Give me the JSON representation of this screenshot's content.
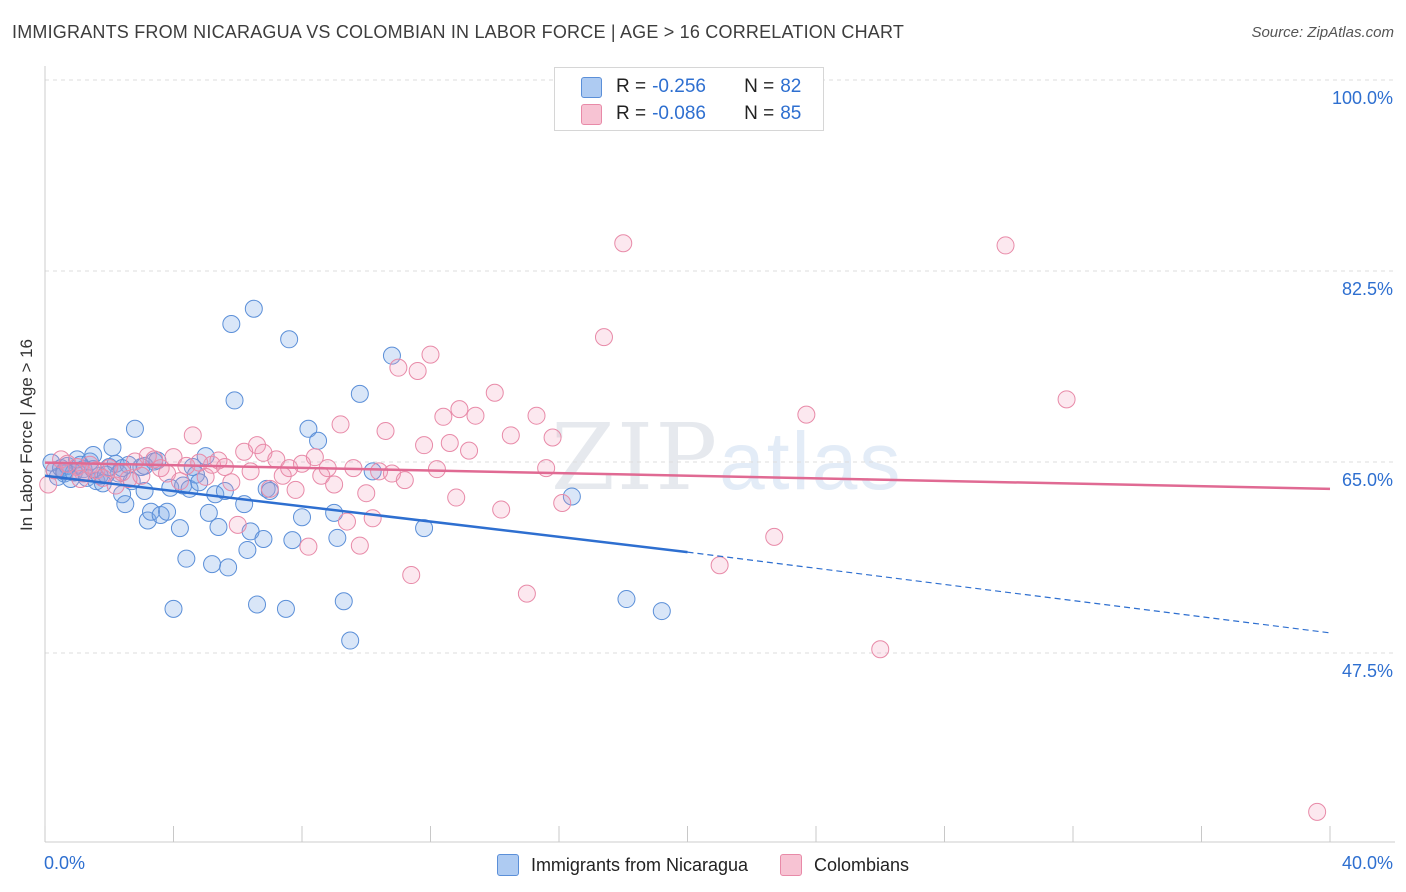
{
  "title": "IMMIGRANTS FROM NICARAGUA VS COLOMBIAN IN LABOR FORCE | AGE > 16 CORRELATION CHART",
  "source": "Source: ZipAtlas.com",
  "watermark": {
    "zip": "ZIP",
    "atlas": "atlas"
  },
  "legend_top": [
    {
      "color": "#aecbf2",
      "border": "#5b8fd8",
      "r_label": "R =",
      "r_value": "-0.256",
      "n_label": "N =",
      "n_value": "82"
    },
    {
      "color": "#f7c3d3",
      "border": "#e88aa8",
      "r_label": "R =",
      "r_value": "-0.086",
      "n_label": "N =",
      "n_value": "85"
    }
  ],
  "legend_bottom": [
    {
      "label": "Immigrants from Nicaragua",
      "color": "#aecbf2",
      "border": "#5b8fd8"
    },
    {
      "label": "Colombians",
      "color": "#f7c3d3",
      "border": "#e88aa8"
    }
  ],
  "colors": {
    "blue": "#2e6fd0",
    "pink": "#e06a93",
    "blue_fill": "rgba(120,165,230,0.28)",
    "pink_fill": "rgba(240,150,180,0.22)"
  },
  "chart_data": {
    "type": "scatter",
    "title": "IMMIGRANTS FROM NICARAGUA VS COLOMBIAN IN LABOR FORCE | AGE > 16 CORRELATION CHART",
    "xlabel": "",
    "ylabel": "In Labor Force | Age > 16",
    "xlim": [
      0,
      40
    ],
    "ylim": [
      30,
      100
    ],
    "x_tick_labels": [
      "0.0%",
      "40.0%"
    ],
    "y_ticks": [
      47.5,
      65.0,
      82.5,
      100.0
    ],
    "y_tick_labels": [
      "47.5%",
      "65.0%",
      "82.5%",
      "100.0%"
    ],
    "grid": true,
    "series": [
      {
        "name": "Immigrants from Nicaragua",
        "points": [
          [
            0.2,
            66.5
          ],
          [
            0.3,
            65.8
          ],
          [
            0.4,
            65.2
          ],
          [
            0.5,
            66.0
          ],
          [
            0.6,
            65.5
          ],
          [
            0.7,
            66.2
          ],
          [
            0.8,
            65.0
          ],
          [
            0.9,
            65.6
          ],
          [
            1.0,
            66.8
          ],
          [
            1.1,
            66.3
          ],
          [
            1.2,
            65.9
          ],
          [
            1.3,
            65.1
          ],
          [
            1.4,
            66.6
          ],
          [
            1.5,
            67.2
          ],
          [
            1.6,
            64.8
          ],
          [
            1.7,
            65.3
          ],
          [
            1.8,
            64.6
          ],
          [
            2.1,
            67.9
          ],
          [
            2.2,
            66.4
          ],
          [
            2.3,
            65.5
          ],
          [
            2.4,
            63.6
          ],
          [
            2.5,
            62.7
          ],
          [
            2.6,
            66.3
          ],
          [
            2.7,
            64.8
          ],
          [
            2.8,
            69.6
          ],
          [
            3.0,
            66.1
          ],
          [
            3.1,
            63.9
          ],
          [
            3.2,
            61.2
          ],
          [
            3.3,
            62.0
          ],
          [
            3.4,
            66.6
          ],
          [
            3.5,
            66.7
          ],
          [
            3.6,
            61.7
          ],
          [
            3.8,
            62.0
          ],
          [
            3.9,
            64.2
          ],
          [
            4.0,
            53.1
          ],
          [
            4.2,
            60.5
          ],
          [
            4.3,
            64.4
          ],
          [
            4.4,
            57.7
          ],
          [
            4.5,
            64.1
          ],
          [
            4.6,
            66.1
          ],
          [
            4.7,
            65.4
          ],
          [
            4.8,
            64.7
          ],
          [
            5.0,
            67.1
          ],
          [
            5.1,
            61.9
          ],
          [
            5.2,
            57.2
          ],
          [
            5.3,
            63.6
          ],
          [
            5.4,
            60.6
          ],
          [
            5.6,
            63.9
          ],
          [
            5.7,
            56.9
          ],
          [
            5.8,
            79.2
          ],
          [
            5.9,
            72.2
          ],
          [
            6.2,
            62.7
          ],
          [
            6.3,
            58.5
          ],
          [
            6.4,
            60.2
          ],
          [
            6.5,
            80.6
          ],
          [
            6.6,
            53.5
          ],
          [
            6.8,
            59.5
          ],
          [
            6.9,
            64.1
          ],
          [
            7.0,
            63.9
          ],
          [
            7.5,
            53.1
          ],
          [
            7.6,
            77.8
          ],
          [
            7.7,
            59.4
          ],
          [
            8.0,
            61.5
          ],
          [
            8.2,
            69.6
          ],
          [
            8.5,
            68.5
          ],
          [
            9.0,
            61.9
          ],
          [
            9.1,
            59.6
          ],
          [
            9.3,
            53.8
          ],
          [
            9.5,
            50.2
          ],
          [
            9.8,
            72.8
          ],
          [
            10.2,
            65.7
          ],
          [
            10.8,
            76.3
          ],
          [
            2.0,
            66.1
          ],
          [
            1.5,
            65.9
          ],
          [
            2.4,
            66.0
          ],
          [
            3.1,
            66.2
          ],
          [
            0.6,
            65.7
          ],
          [
            1.9,
            65.4
          ],
          [
            11.8,
            60.5
          ],
          [
            16.4,
            63.4
          ],
          [
            18.1,
            54.0
          ],
          [
            19.2,
            52.9
          ]
        ]
      },
      {
        "name": "Colombians",
        "points": [
          [
            0.1,
            64.5
          ],
          [
            0.3,
            65.8
          ],
          [
            0.5,
            66.8
          ],
          [
            0.7,
            66.4
          ],
          [
            1.0,
            66.1
          ],
          [
            1.2,
            65.5
          ],
          [
            1.4,
            66.3
          ],
          [
            1.6,
            65.8
          ],
          [
            1.8,
            65.1
          ],
          [
            2.0,
            66.0
          ],
          [
            2.2,
            64.4
          ],
          [
            2.4,
            65.6
          ],
          [
            2.6,
            65.0
          ],
          [
            2.8,
            66.6
          ],
          [
            3.0,
            65.3
          ],
          [
            3.2,
            67.1
          ],
          [
            3.4,
            66.8
          ],
          [
            3.6,
            66.0
          ],
          [
            3.8,
            65.5
          ],
          [
            4.0,
            67.0
          ],
          [
            4.2,
            64.8
          ],
          [
            4.4,
            66.2
          ],
          [
            4.6,
            69.0
          ],
          [
            4.8,
            66.5
          ],
          [
            5.0,
            65.2
          ],
          [
            5.2,
            66.3
          ],
          [
            5.4,
            66.7
          ],
          [
            5.6,
            66.1
          ],
          [
            5.8,
            64.7
          ],
          [
            6.0,
            60.8
          ],
          [
            6.2,
            67.5
          ],
          [
            6.4,
            65.7
          ],
          [
            6.6,
            68.1
          ],
          [
            6.8,
            67.4
          ],
          [
            7.0,
            64.1
          ],
          [
            7.2,
            66.8
          ],
          [
            7.4,
            65.3
          ],
          [
            7.6,
            66.0
          ],
          [
            7.8,
            64.0
          ],
          [
            8.0,
            66.4
          ],
          [
            8.2,
            58.8
          ],
          [
            8.4,
            67.0
          ],
          [
            8.6,
            65.3
          ],
          [
            8.8,
            66.0
          ],
          [
            9.0,
            64.5
          ],
          [
            9.2,
            70.0
          ],
          [
            9.4,
            61.1
          ],
          [
            9.6,
            66.0
          ],
          [
            9.8,
            58.9
          ],
          [
            10.0,
            63.7
          ],
          [
            10.2,
            61.4
          ],
          [
            10.4,
            65.7
          ],
          [
            10.6,
            69.4
          ],
          [
            10.8,
            65.5
          ],
          [
            11.0,
            75.2
          ],
          [
            11.2,
            64.9
          ],
          [
            11.4,
            56.2
          ],
          [
            11.6,
            74.9
          ],
          [
            11.8,
            68.1
          ],
          [
            12.0,
            76.4
          ],
          [
            12.2,
            65.9
          ],
          [
            12.4,
            70.7
          ],
          [
            12.6,
            68.3
          ],
          [
            12.8,
            63.3
          ],
          [
            12.9,
            71.4
          ],
          [
            13.2,
            67.6
          ],
          [
            13.4,
            70.8
          ],
          [
            14.0,
            72.9
          ],
          [
            14.2,
            62.2
          ],
          [
            14.5,
            69.0
          ],
          [
            15.0,
            54.5
          ],
          [
            15.3,
            70.8
          ],
          [
            15.6,
            66.0
          ],
          [
            15.8,
            68.8
          ],
          [
            16.1,
            62.8
          ],
          [
            17.4,
            78.0
          ],
          [
            18.0,
            86.6
          ],
          [
            21.0,
            57.1
          ],
          [
            22.7,
            59.7
          ],
          [
            23.7,
            70.9
          ],
          [
            26.0,
            49.4
          ],
          [
            29.9,
            86.4
          ],
          [
            31.8,
            72.3
          ],
          [
            39.6,
            34.5
          ],
          [
            1.1,
            65.0
          ]
        ]
      }
    ],
    "trend_lines": [
      {
        "series": "Immigrants from Nicaragua",
        "solid": [
          [
            0,
            65.3
          ],
          [
            20,
            58.3
          ]
        ],
        "dashed": [
          [
            20,
            58.3
          ],
          [
            40,
            50.9
          ]
        ]
      },
      {
        "series": "Colombians",
        "solid": [
          [
            0,
            66.5
          ],
          [
            40,
            64.1
          ]
        ]
      }
    ]
  }
}
